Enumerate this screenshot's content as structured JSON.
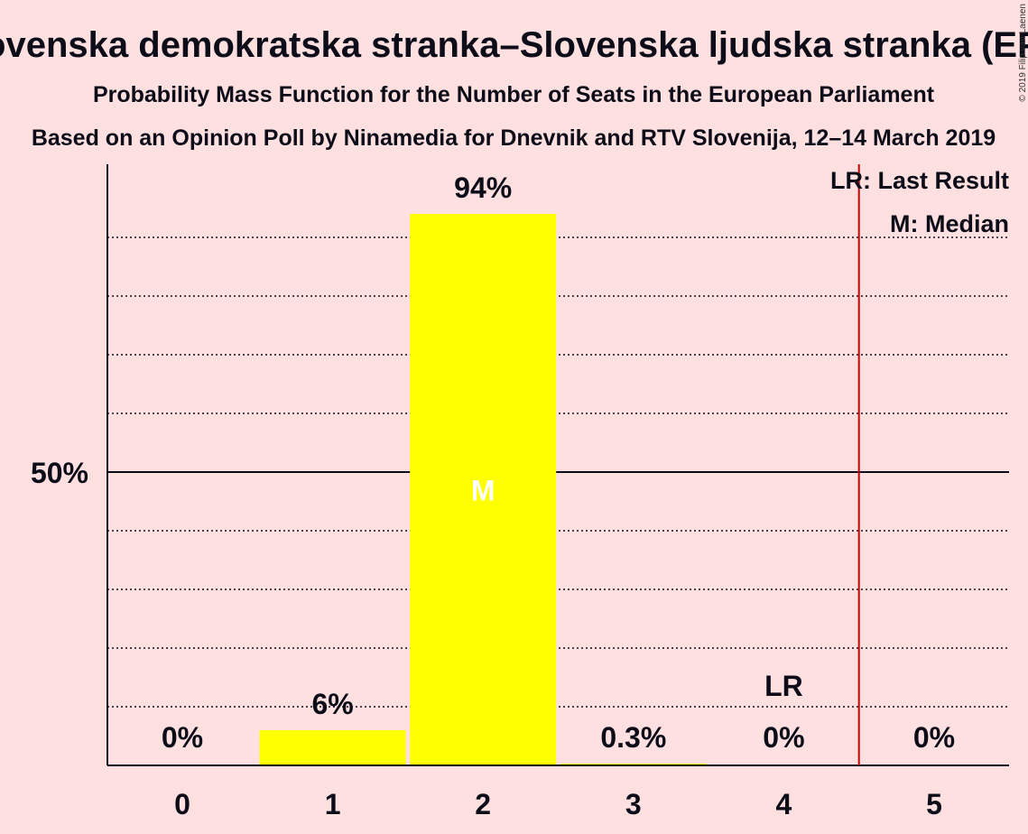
{
  "chart_data": {
    "type": "bar",
    "title": "Slovenska demokratska stranka–Slovenska ljudska stranka (EPP)",
    "subtitle": "Probability Mass Function for the Number of Seats in the European Parliament",
    "source": "Based on an Opinion Poll by Ninamedia for Dnevnik and RTV Slovenija, 12–14 March 2019",
    "copyright": "© 2019 Filip van Laenen",
    "categories": [
      "0",
      "1",
      "2",
      "3",
      "4",
      "5"
    ],
    "values": [
      0,
      6,
      94,
      0.3,
      0,
      0
    ],
    "value_labels": [
      "0%",
      "6%",
      "94%",
      "0.3%",
      "0%",
      "0%"
    ],
    "ylim": [
      0,
      100
    ],
    "y_ticks": [
      {
        "value": 50,
        "label": "50%"
      }
    ],
    "gridlines": [
      10,
      20,
      30,
      40,
      60,
      70,
      80,
      90
    ],
    "median_index": 2,
    "median_marker": "M",
    "last_result_index": 4,
    "last_result_marker": "LR",
    "threshold_x": 4.5,
    "legend": [
      "LR: Last Result",
      "M: Median"
    ],
    "legend_position": "top-right",
    "bar_color": "#ffff00",
    "threshold_color": "#cc0000"
  }
}
